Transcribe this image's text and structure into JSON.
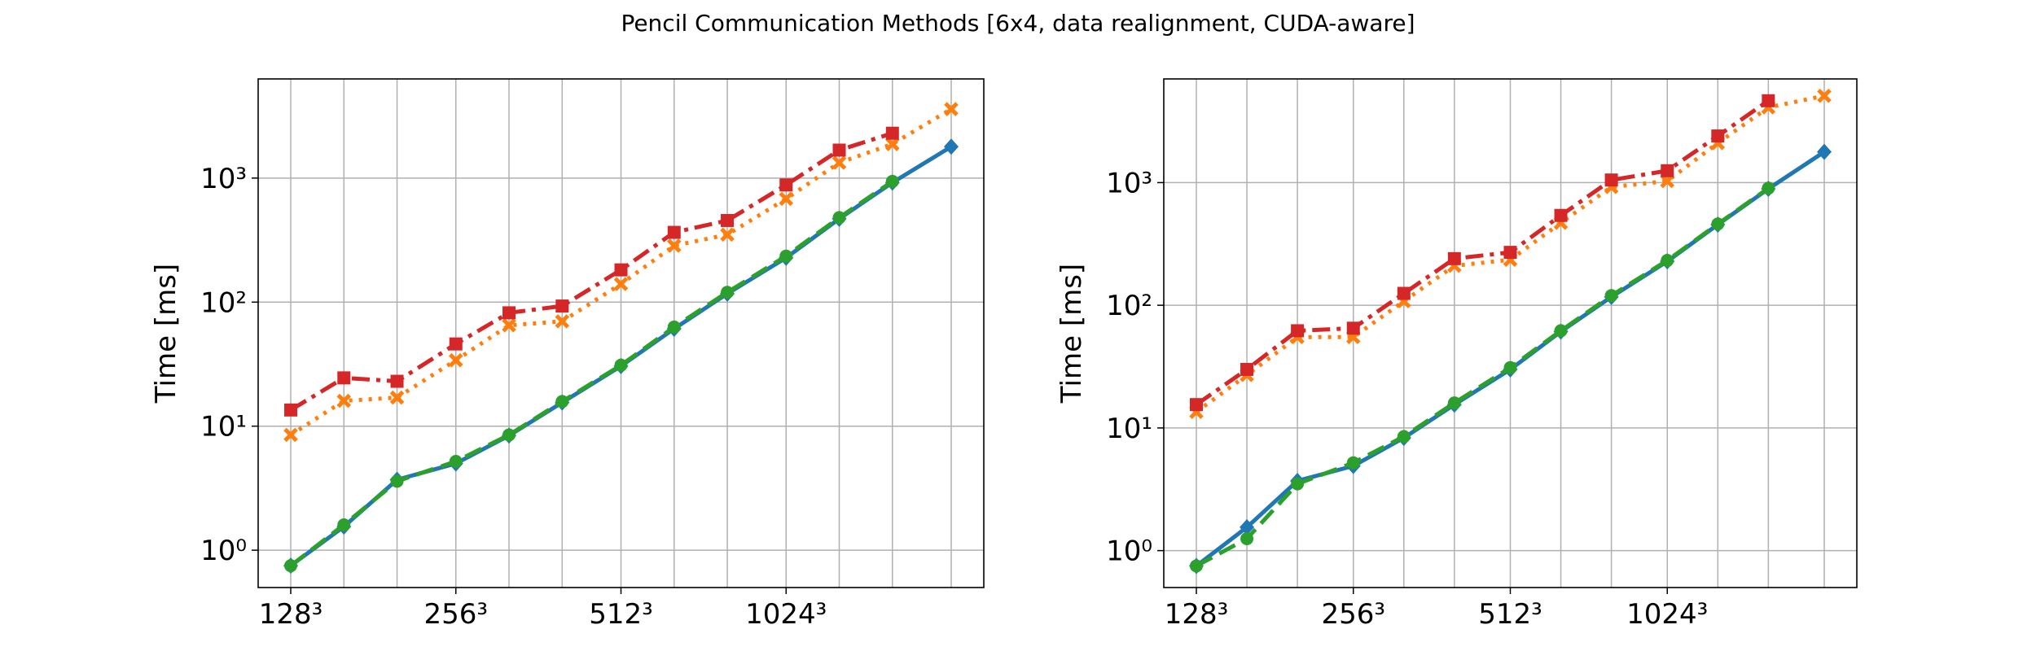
{
  "figure": {
    "title": "Pencil Communication Methods [6x4, data realignment, CUDA-aware]"
  },
  "chart_data": [
    {
      "type": "line",
      "title": "",
      "xlabel": "",
      "ylabel": "Time [ms]",
      "yscale": "log",
      "ylim": [
        0.5,
        6300
      ],
      "grid": true,
      "x": [
        128,
        160,
        200,
        256,
        320,
        400,
        512,
        640,
        800,
        1024,
        1280,
        1600,
        2048
      ],
      "xticks": [
        128,
        256,
        512,
        1024
      ],
      "xticklabels": [
        "128³",
        "256³",
        "512³",
        "1024³"
      ],
      "yticks": [
        1,
        10,
        100,
        1000
      ],
      "yticklabels": [
        "10⁰",
        "10¹",
        "10²",
        "10³"
      ],
      "series": [
        {
          "color": "#1f77b4",
          "linestyle": "solid",
          "marker": "diamond",
          "values": [
            0.75,
            1.55,
            3.7,
            5.0,
            8.4,
            15.5,
            30.5,
            61,
            117,
            228,
            470,
            920,
            1790
          ]
        },
        {
          "color": "#ff7f0e",
          "linestyle": "dotted",
          "marker": "x",
          "values": [
            8.5,
            16,
            17,
            34,
            65,
            70,
            140,
            285,
            350,
            680,
            1330,
            1880,
            3600
          ]
        },
        {
          "color": "#2ca02c",
          "linestyle": "dashed",
          "marker": "circle",
          "values": [
            0.75,
            1.6,
            3.6,
            5.2,
            8.5,
            15.8,
            31,
            63,
            120,
            235,
            480,
            940,
            null
          ]
        },
        {
          "color": "#d62728",
          "linestyle": "dashdot",
          "marker": "square",
          "values": [
            13.5,
            24.5,
            23,
            46,
            82,
            93,
            182,
            365,
            455,
            880,
            1680,
            2300,
            null
          ]
        }
      ]
    },
    {
      "type": "line",
      "title": "",
      "xlabel": "",
      "ylabel": "Time [ms]",
      "yscale": "log",
      "ylim": [
        0.5,
        7000
      ],
      "grid": true,
      "x": [
        128,
        160,
        200,
        256,
        320,
        400,
        512,
        640,
        800,
        1024,
        1280,
        1600,
        2048
      ],
      "xticks": [
        128,
        256,
        512,
        1024
      ],
      "xticklabels": [
        "128³",
        "256³",
        "512³",
        "1024³"
      ],
      "yticks": [
        1,
        10,
        100,
        1000
      ],
      "yticklabels": [
        "10⁰",
        "10¹",
        "10²",
        "10³"
      ],
      "series": [
        {
          "color": "#1f77b4",
          "linestyle": "solid",
          "marker": "diamond",
          "values": [
            0.75,
            1.55,
            3.7,
            4.9,
            8.3,
            15.5,
            30,
            61,
            117,
            228,
            455,
            890,
            1780
          ]
        },
        {
          "color": "#ff7f0e",
          "linestyle": "dotted",
          "marker": "x",
          "values": [
            13.5,
            27,
            55,
            55,
            108,
            210,
            235,
            470,
            920,
            1030,
            2100,
            4100,
            5100
          ]
        },
        {
          "color": "#2ca02c",
          "linestyle": "dashed",
          "marker": "circle",
          "values": [
            0.75,
            1.25,
            3.5,
            5.2,
            8.5,
            16,
            31,
            62,
            120,
            232,
            460,
            900,
            null
          ]
        },
        {
          "color": "#d62728",
          "linestyle": "dashdot",
          "marker": "square",
          "values": [
            15.5,
            30,
            62,
            65,
            125,
            240,
            270,
            540,
            1050,
            1250,
            2400,
            4650,
            null
          ]
        }
      ]
    }
  ]
}
